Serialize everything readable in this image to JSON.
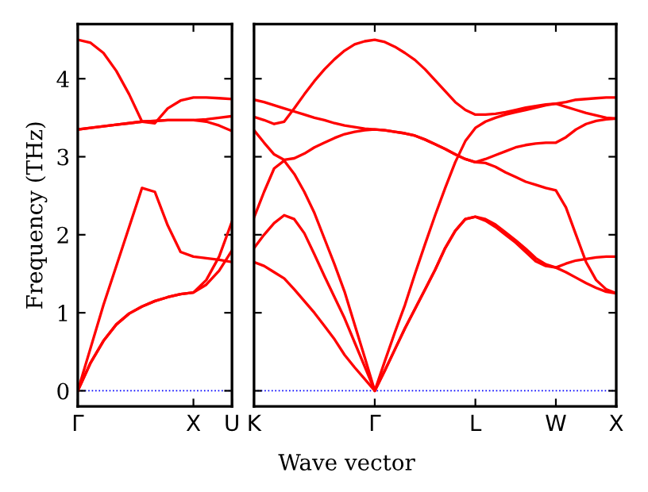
{
  "chart_data": [
    {
      "type": "line",
      "ylabel": "Frequency (THz)",
      "categories": [
        "Γ",
        null,
        null,
        null,
        null,
        null,
        null,
        null,
        null,
        "X",
        null,
        null,
        "U"
      ],
      "ylim": [
        -0.2,
        4.7
      ],
      "yticks": [
        0,
        1,
        2,
        3,
        4
      ],
      "grid": false,
      "ref_lines": [
        {
          "axis": "y",
          "value": 0,
          "color": "#0000ff",
          "line_style": "dotted"
        }
      ],
      "series": [
        {
          "color": "#ff0000",
          "values": [
            0,
            0.36,
            0.64,
            0.85,
            0.99,
            1.08,
            1.15,
            1.2,
            1.24,
            1.26,
            1.36,
            1.54,
            1.8
          ]
        },
        {
          "color": "#ff0000",
          "values": [
            0,
            0.36,
            0.64,
            0.85,
            0.99,
            1.08,
            1.15,
            1.2,
            1.24,
            1.26,
            1.42,
            1.72,
            2.17
          ]
        },
        {
          "color": "#ff0000",
          "values": [
            0,
            0.55,
            1.1,
            1.6,
            2.1,
            2.6,
            2.55,
            2.12,
            1.78,
            1.72,
            1.7,
            1.68,
            1.65
          ]
        },
        {
          "color": "#ff0000",
          "values": [
            3.35,
            3.37,
            3.39,
            3.41,
            3.43,
            3.45,
            3.46,
            3.47,
            3.47,
            3.47,
            3.48,
            3.5,
            3.52
          ]
        },
        {
          "color": "#ff0000",
          "values": [
            3.35,
            3.37,
            3.39,
            3.41,
            3.43,
            3.45,
            3.46,
            3.47,
            3.47,
            3.47,
            3.45,
            3.4,
            3.33
          ]
        },
        {
          "color": "#ff0000",
          "values": [
            4.5,
            4.46,
            4.33,
            4.1,
            3.8,
            3.45,
            3.43,
            3.62,
            3.72,
            3.76,
            3.76,
            3.75,
            3.74
          ]
        }
      ]
    },
    {
      "type": "line",
      "xlabel": "Wave vector",
      "categories": [
        "K",
        null,
        null,
        null,
        null,
        null,
        null,
        null,
        null,
        null,
        null,
        null,
        "Γ",
        null,
        null,
        null,
        null,
        null,
        null,
        null,
        null,
        null,
        "L",
        null,
        null,
        null,
        null,
        null,
        null,
        null,
        "W",
        null,
        null,
        null,
        null,
        null,
        "X"
      ],
      "ylim": [
        -0.2,
        4.7
      ],
      "yticks": [
        0,
        1,
        2,
        3,
        4
      ],
      "tick_labels": "x",
      "grid": false,
      "ref_lines": [
        {
          "axis": "y",
          "value": 0,
          "color": "#0000ff",
          "line_style": "dotted"
        }
      ],
      "series": [
        {
          "color": "#ff0000",
          "values": [
            1.65,
            1.6,
            1.52,
            1.44,
            1.3,
            1.15,
            1.0,
            0.83,
            0.66,
            0.46,
            0.3,
            0.15,
            0,
            0.26,
            0.53,
            0.8,
            1.05,
            1.3,
            1.55,
            1.83,
            2.05,
            2.2,
            2.23,
            2.18,
            2.1,
            2.0,
            1.9,
            1.78,
            1.66,
            1.6,
            1.58,
            1.52,
            1.45,
            1.38,
            1.32,
            1.27,
            1.25
          ]
        },
        {
          "color": "#ff0000",
          "values": [
            1.83,
            2.0,
            2.15,
            2.25,
            2.2,
            2.02,
            1.75,
            1.47,
            1.2,
            0.93,
            0.62,
            0.31,
            0,
            0.26,
            0.53,
            0.8,
            1.05,
            1.3,
            1.55,
            1.83,
            2.05,
            2.2,
            2.23,
            2.2,
            2.13,
            2.03,
            1.93,
            1.82,
            1.7,
            1.62,
            1.58,
            1.63,
            1.67,
            1.69,
            1.71,
            1.72,
            1.72
          ]
        },
        {
          "color": "#ff0000",
          "values": [
            2.22,
            2.55,
            2.85,
            2.95,
            2.78,
            2.55,
            2.28,
            1.95,
            1.62,
            1.27,
            0.85,
            0.43,
            0,
            0.38,
            0.75,
            1.1,
            1.5,
            1.88,
            2.25,
            2.6,
            2.93,
            3.2,
            3.37,
            3.45,
            3.5,
            3.54,
            3.57,
            3.6,
            3.63,
            3.66,
            3.68,
            3.64,
            3.6,
            3.56,
            3.53,
            3.5,
            3.49
          ]
        },
        {
          "color": "#ff0000",
          "values": [
            3.34,
            3.18,
            3.03,
            2.96,
            2.98,
            3.04,
            3.12,
            3.18,
            3.24,
            3.29,
            3.32,
            3.34,
            3.35,
            3.34,
            3.32,
            3.3,
            3.27,
            3.22,
            3.16,
            3.1,
            3.03,
            2.97,
            2.93,
            2.97,
            3.02,
            3.07,
            3.12,
            3.15,
            3.17,
            3.18,
            3.18,
            3.25,
            3.35,
            3.42,
            3.46,
            3.48,
            3.49
          ]
        },
        {
          "color": "#ff0000",
          "values": [
            3.73,
            3.7,
            3.66,
            3.62,
            3.58,
            3.54,
            3.5,
            3.47,
            3.43,
            3.4,
            3.38,
            3.36,
            3.35,
            3.34,
            3.32,
            3.3,
            3.27,
            3.22,
            3.16,
            3.1,
            3.03,
            2.97,
            2.93,
            2.92,
            2.87,
            2.8,
            2.74,
            2.68,
            2.64,
            2.6,
            2.57,
            2.35,
            2.0,
            1.65,
            1.42,
            1.3,
            1.25
          ]
        },
        {
          "color": "#ff0000",
          "values": [
            3.51,
            3.47,
            3.42,
            3.45,
            3.62,
            3.8,
            3.97,
            4.12,
            4.25,
            4.36,
            4.44,
            4.48,
            4.5,
            4.47,
            4.41,
            4.33,
            4.24,
            4.12,
            3.98,
            3.84,
            3.7,
            3.6,
            3.54,
            3.54,
            3.55,
            3.57,
            3.6,
            3.63,
            3.65,
            3.67,
            3.68,
            3.7,
            3.73,
            3.74,
            3.75,
            3.76,
            3.76
          ]
        }
      ]
    }
  ]
}
